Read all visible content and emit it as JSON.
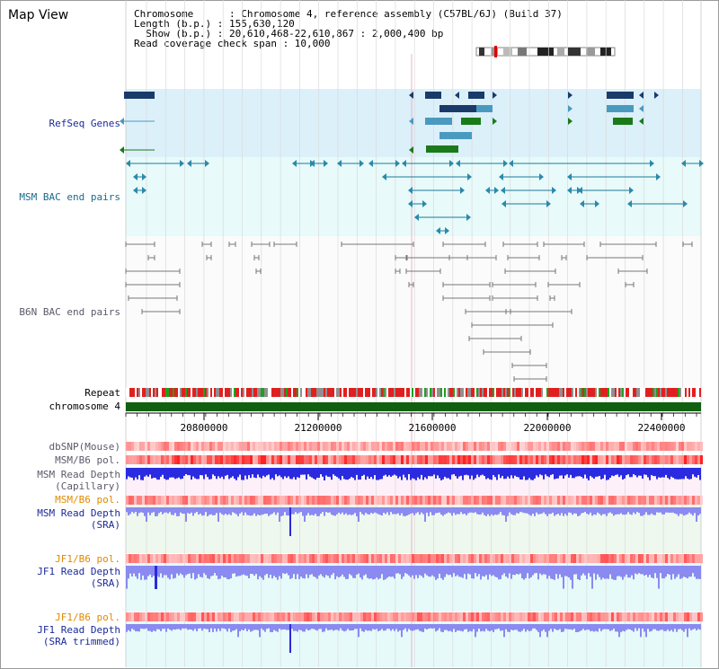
{
  "title": "Map View",
  "info": {
    "chromosome": "Chromosome      : Chromosome 4, reference assembly (C57BL/6J) (Build 37)",
    "length": "Length (b.p.) : 155,630,120",
    "show": "  Show (b.p.) : 20,610,468-22,610,867 : 2,000,400 bp",
    "span": "Read coverage check span : 10,000"
  },
  "tracks": {
    "refseq": "RefSeq Genes",
    "msm_bac": "MSM BAC end pairs",
    "b6n_bac": "B6N BAC end pairs",
    "repeat": "Repeat",
    "chromosome": "chromosome 4",
    "dbsnp": "dbSNP(Mouse)",
    "msm_b6_pol_1": "MSM/B6 pol.",
    "msm_read_cap_1": "MSM Read Depth",
    "msm_read_cap_2": "(Capillary)",
    "msm_b6_pol_2": "MSM/B6 pol.",
    "msm_read_sra_1": "MSM Read Depth",
    "msm_read_sra_2": "(SRA)",
    "jf1_b6_pol_1": "JF1/B6 pol.",
    "jf1_read_1": "JF1 Read Depth",
    "jf1_read_2": "(SRA)",
    "jf1_b6_pol_2": "JF1/B6 pol.",
    "jf1_trim_1": "JF1 Read Depth",
    "jf1_trim_2": "(SRA trimmed)"
  },
  "ruler_ticks": [
    "20800000",
    "21200000",
    "21600000",
    "22000000",
    "22400000"
  ],
  "colors": {
    "refseq_bg": "#dcf0fa",
    "bac_bg": "#e8fafa",
    "gene_dark": "#1a3a6a",
    "gene_mid": "#4a9ac0",
    "gene_green": "#1a7a1a",
    "chromosome": "#106010",
    "read_blue": "#2a2ae0",
    "read_light": "#8a8af0"
  }
}
